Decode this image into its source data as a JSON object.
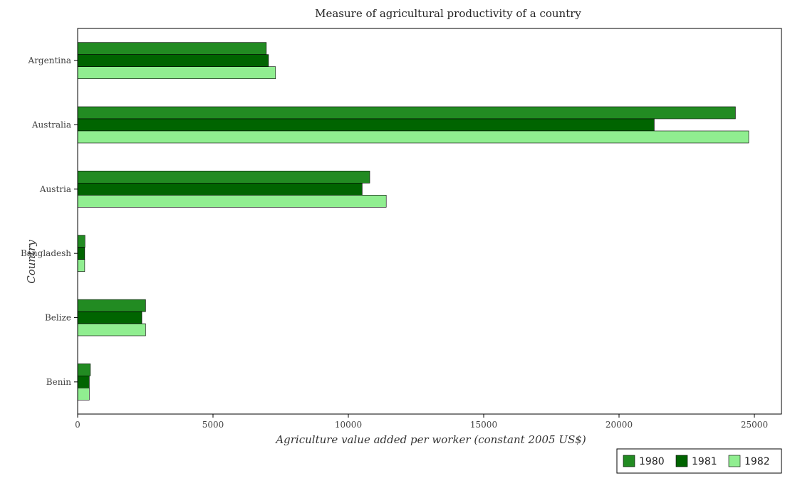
{
  "chart_data": {
    "type": "bar",
    "orientation": "horizontal",
    "title": "Measure of agricultural productivity of a country",
    "xlabel": "Agriculture value added per worker (constant 2005 US$)",
    "ylabel": "Country",
    "categories": [
      "Argentina",
      "Australia",
      "Austria",
      "Bangladesh",
      "Belize",
      "Benin"
    ],
    "series": [
      {
        "name": "1980",
        "color": "#228b22",
        "values": [
          6970,
          24300,
          10790,
          270,
          2510,
          470
        ]
      },
      {
        "name": "1981",
        "color": "#006400",
        "values": [
          7050,
          21300,
          10510,
          260,
          2370,
          430
        ]
      },
      {
        "name": "1982",
        "color": "#90ee90",
        "values": [
          7310,
          24790,
          11400,
          260,
          2510,
          430
        ]
      }
    ],
    "xlim": [
      0,
      26000
    ],
    "xticks": [
      0,
      5000,
      10000,
      15000,
      20000,
      25000
    ],
    "xtick_labels": [
      "0",
      "5000",
      "10000",
      "15000",
      "20000",
      "25000"
    ],
    "grid": false,
    "legend_position": "bottom-right"
  }
}
